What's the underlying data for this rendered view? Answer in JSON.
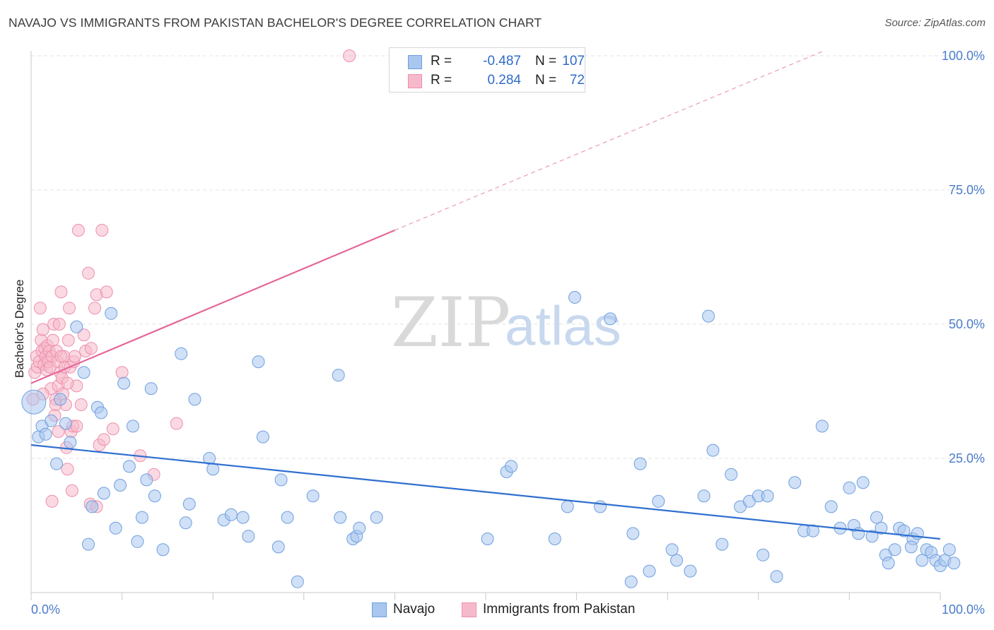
{
  "title": "NAVAJO VS IMMIGRANTS FROM PAKISTAN BACHELOR'S DEGREE CORRELATION CHART",
  "source": "Source: ZipAtlas.com",
  "watermark": {
    "zip": "ZIP",
    "atlas": "atlas"
  },
  "legend": {
    "r_label": "R =",
    "n_label": "N =",
    "navajo": {
      "r": "-0.487",
      "n": "107"
    },
    "pakistan": {
      "r": "0.284",
      "n": "72"
    }
  },
  "bottom_legend": {
    "navajo": "Navajo",
    "pakistan": "Immigrants from Pakistan"
  },
  "colors": {
    "navajo_fill": "#a9c6ee",
    "navajo_stroke": "#6f9fe0",
    "navajo_line": "#2f6fd0",
    "pakistan_fill": "#f6b9cb",
    "pakistan_stroke": "#ee8fac",
    "pakistan_line": "#e5679a",
    "axis_text": "#4a7cc9",
    "grid": "#e3e3e3"
  },
  "chart_data": {
    "type": "scatter",
    "xlabel": "",
    "ylabel": "Bachelor's Degree",
    "xlim": [
      0,
      100
    ],
    "ylim": [
      0,
      100
    ],
    "x_tick_labels": [
      "0.0%",
      "100.0%"
    ],
    "y_ticks": [
      25,
      50,
      75,
      100
    ],
    "y_tick_labels": [
      "25.0%",
      "50.0%",
      "75.0%",
      "100.0%"
    ],
    "series": [
      {
        "name": "Navajo",
        "trend": {
          "x0": 0,
          "y0": 27.5,
          "x1": 100,
          "y1": 10.0
        },
        "points": [
          [
            0.3,
            35.5
          ],
          [
            0.8,
            29
          ],
          [
            1.2,
            31
          ],
          [
            1.6,
            29.5
          ],
          [
            2.2,
            32
          ],
          [
            2.8,
            24
          ],
          [
            3.2,
            36
          ],
          [
            3.8,
            31.5
          ],
          [
            4.3,
            28
          ],
          [
            5.0,
            49.5
          ],
          [
            5.8,
            41
          ],
          [
            6.3,
            9
          ],
          [
            6.7,
            16
          ],
          [
            7.3,
            34.5
          ],
          [
            7.7,
            33.5
          ],
          [
            8.0,
            18.5
          ],
          [
            8.8,
            52
          ],
          [
            9.3,
            12
          ],
          [
            9.8,
            20
          ],
          [
            10.2,
            39
          ],
          [
            10.8,
            23.5
          ],
          [
            11.2,
            31
          ],
          [
            11.7,
            9.5
          ],
          [
            12.2,
            14
          ],
          [
            12.7,
            21
          ],
          [
            13.2,
            38
          ],
          [
            13.6,
            18
          ],
          [
            14.5,
            8
          ],
          [
            16.5,
            44.5
          ],
          [
            17.0,
            13
          ],
          [
            17.4,
            16.5
          ],
          [
            18.0,
            36
          ],
          [
            19.6,
            25
          ],
          [
            20.0,
            23
          ],
          [
            21.2,
            13.5
          ],
          [
            22.0,
            14.5
          ],
          [
            23.3,
            14
          ],
          [
            23.9,
            10.5
          ],
          [
            25.0,
            43
          ],
          [
            25.5,
            29
          ],
          [
            27.2,
            8.5
          ],
          [
            27.5,
            21
          ],
          [
            28.2,
            14
          ],
          [
            29.3,
            2
          ],
          [
            31.0,
            18
          ],
          [
            33.8,
            40.5
          ],
          [
            34.0,
            14
          ],
          [
            35.4,
            10
          ],
          [
            35.8,
            10.5
          ],
          [
            36.1,
            12
          ],
          [
            38.0,
            14
          ],
          [
            50.2,
            10
          ],
          [
            52.3,
            22.5
          ],
          [
            52.8,
            23.5
          ],
          [
            57.6,
            10
          ],
          [
            59.0,
            16
          ],
          [
            59.8,
            55
          ],
          [
            62.6,
            16
          ],
          [
            63.7,
            51
          ],
          [
            66.0,
            2
          ],
          [
            66.2,
            11
          ],
          [
            67.0,
            24
          ],
          [
            68.0,
            4
          ],
          [
            69.0,
            17
          ],
          [
            70.5,
            8
          ],
          [
            71.0,
            6
          ],
          [
            72.5,
            4
          ],
          [
            74.0,
            18
          ],
          [
            74.5,
            51.5
          ],
          [
            75.0,
            26.5
          ],
          [
            76.0,
            9
          ],
          [
            77.0,
            22
          ],
          [
            78.0,
            16
          ],
          [
            79.0,
            17
          ],
          [
            80.0,
            18
          ],
          [
            80.5,
            7
          ],
          [
            81.0,
            18
          ],
          [
            82.0,
            3
          ],
          [
            84.0,
            20.5
          ],
          [
            85.0,
            11.5
          ],
          [
            86.0,
            11.5
          ],
          [
            87.0,
            31
          ],
          [
            88.0,
            16
          ],
          [
            89.0,
            12
          ],
          [
            90.0,
            19.5
          ],
          [
            90.5,
            12.5
          ],
          [
            91.0,
            11
          ],
          [
            91.5,
            20.5
          ],
          [
            92.5,
            10.5
          ],
          [
            93.0,
            14
          ],
          [
            93.5,
            12
          ],
          [
            94.0,
            7
          ],
          [
            95.0,
            8
          ],
          [
            95.5,
            12
          ],
          [
            96.0,
            11.5
          ],
          [
            97.0,
            10
          ],
          [
            97.5,
            11
          ],
          [
            98.0,
            6
          ],
          [
            98.5,
            8
          ],
          [
            99.0,
            7.5
          ],
          [
            99.5,
            6
          ],
          [
            100.0,
            5
          ],
          [
            100.5,
            6
          ],
          [
            101.0,
            8
          ],
          [
            101.5,
            5.5
          ],
          [
            96.8,
            8.5
          ],
          [
            94.3,
            5.5
          ]
        ]
      },
      {
        "name": "Immigrants from Pakistan",
        "trend": {
          "x0": 0,
          "y0": 39.0,
          "x1": 40,
          "y1": 67.5,
          "dash_x1": 100,
          "dash_y1": 110.0
        },
        "points": [
          [
            0.2,
            36
          ],
          [
            0.4,
            41
          ],
          [
            0.6,
            44
          ],
          [
            0.7,
            42
          ],
          [
            0.9,
            43
          ],
          [
            1.0,
            53
          ],
          [
            1.1,
            47
          ],
          [
            1.2,
            45
          ],
          [
            1.3,
            49
          ],
          [
            1.4,
            42.5
          ],
          [
            1.5,
            45.5
          ],
          [
            1.6,
            44
          ],
          [
            1.7,
            41.5
          ],
          [
            1.8,
            46
          ],
          [
            1.9,
            43
          ],
          [
            2.0,
            45
          ],
          [
            2.1,
            42
          ],
          [
            2.2,
            38
          ],
          [
            2.3,
            44
          ],
          [
            2.4,
            47
          ],
          [
            2.5,
            50
          ],
          [
            2.6,
            33
          ],
          [
            2.7,
            36
          ],
          [
            2.8,
            45
          ],
          [
            2.9,
            43
          ],
          [
            3.0,
            38.5
          ],
          [
            3.1,
            50
          ],
          [
            3.2,
            41
          ],
          [
            3.3,
            56
          ],
          [
            3.4,
            40
          ],
          [
            3.5,
            37
          ],
          [
            3.6,
            44
          ],
          [
            3.7,
            42
          ],
          [
            3.8,
            35
          ],
          [
            3.9,
            27
          ],
          [
            4.0,
            23
          ],
          [
            4.1,
            47
          ],
          [
            4.2,
            53
          ],
          [
            4.3,
            42
          ],
          [
            4.4,
            30
          ],
          [
            4.5,
            19
          ],
          [
            4.6,
            31
          ],
          [
            4.7,
            43
          ],
          [
            5.0,
            38.5
          ],
          [
            5.2,
            67.5
          ],
          [
            5.5,
            35
          ],
          [
            5.8,
            48
          ],
          [
            6.0,
            45
          ],
          [
            6.3,
            59.5
          ],
          [
            6.6,
            45.5
          ],
          [
            7.0,
            53
          ],
          [
            7.2,
            55.5
          ],
          [
            7.5,
            27.5
          ],
          [
            7.8,
            67.5
          ],
          [
            8.0,
            28.5
          ],
          [
            8.3,
            56
          ],
          [
            9.0,
            30.5
          ],
          [
            10.0,
            41
          ],
          [
            12.0,
            25.5
          ],
          [
            13.5,
            22
          ],
          [
            16.0,
            31.5
          ],
          [
            35.0,
            100
          ],
          [
            2.3,
            17
          ],
          [
            3.3,
            44
          ],
          [
            4.8,
            44
          ],
          [
            1.3,
            37
          ],
          [
            2.7,
            35
          ],
          [
            3.0,
            30
          ],
          [
            6.5,
            16.5
          ],
          [
            7.2,
            16
          ],
          [
            4.0,
            39
          ],
          [
            5.0,
            31
          ]
        ]
      }
    ]
  }
}
